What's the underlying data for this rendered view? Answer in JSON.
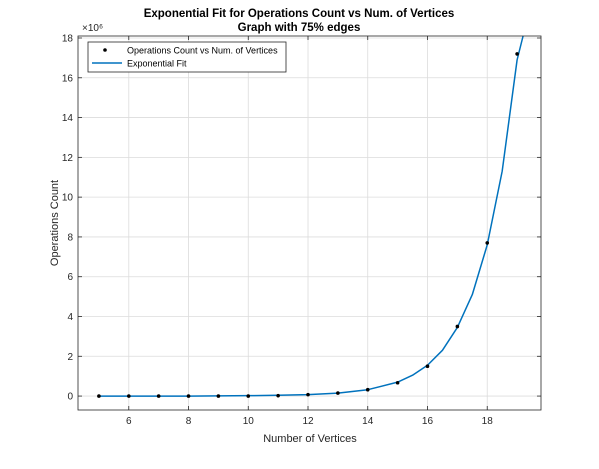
{
  "chart_data": {
    "type": "scatter",
    "title": "Exponential Fit for Operations Count vs Num. of Vertices",
    "subtitle": "Graph with 75% edges",
    "xlabel": "Number of Vertices",
    "ylabel": "Operations Count",
    "y_exponent_label": "×10⁶",
    "x_range": [
      4.3,
      19.8
    ],
    "y_range": [
      -0.7,
      18.1
    ],
    "x_ticks": [
      6,
      8,
      10,
      12,
      14,
      16,
      18
    ],
    "y_ticks": [
      0,
      2,
      4,
      6,
      8,
      10,
      12,
      14,
      16,
      18
    ],
    "grid": true,
    "legend_position": "top-left",
    "series": [
      {
        "name": "Operations Count vs Num. of Vertices",
        "kind": "markers",
        "color": "#000000",
        "x": [
          5,
          6,
          7,
          8,
          9,
          10,
          11,
          12,
          13,
          14,
          15,
          16,
          17,
          18,
          19
        ],
        "y": [
          0.0,
          0.0,
          0.0,
          0.0,
          0.0,
          0.0,
          0.02,
          0.07,
          0.15,
          0.32,
          0.67,
          1.5,
          3.5,
          7.7,
          17.2
        ]
      },
      {
        "name": "Exponential Fit",
        "kind": "line",
        "color": "#0072bd",
        "x": [
          5,
          6,
          7,
          8,
          9,
          10,
          11,
          12,
          13,
          14,
          15,
          15.5,
          16,
          16.5,
          17,
          17.5,
          18,
          18.5,
          19,
          19.2
        ],
        "y": [
          0.0,
          0.0,
          0.0,
          0.0,
          0.01,
          0.02,
          0.04,
          0.07,
          0.15,
          0.32,
          0.7,
          1.05,
          1.55,
          2.3,
          3.45,
          5.1,
          7.6,
          11.3,
          16.9,
          18.1
        ]
      }
    ]
  }
}
